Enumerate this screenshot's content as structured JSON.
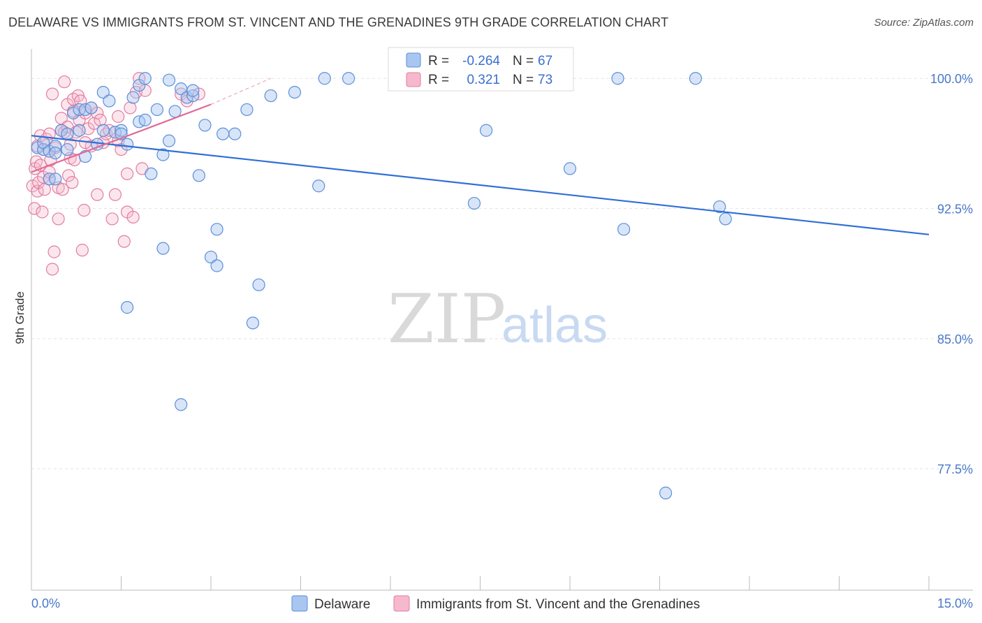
{
  "title": "DELAWARE VS IMMIGRANTS FROM ST. VINCENT AND THE GRENADINES 9TH GRADE CORRELATION CHART",
  "source": "Source: ZipAtlas.com",
  "watermark": {
    "zip": "ZIP",
    "atlas": "atlas"
  },
  "colors": {
    "blue_fill": "#a9c6f0",
    "blue_stroke": "#5b8fd9",
    "blue_line": "#2f6fd6",
    "pink_fill": "#f6b8cc",
    "pink_stroke": "#e07ea0",
    "pink_line": "#e06a96",
    "grid": "#e4e4e4",
    "tick_text": "#4a78c8"
  },
  "legend": {
    "rows": [
      {
        "r_label": "R =",
        "r_value": "-0.264",
        "n_label": "N =",
        "n_value": "67"
      },
      {
        "r_label": "R =",
        "r_value": "0.321",
        "n_label": "N =",
        "n_value": "73"
      }
    ]
  },
  "chart_data": {
    "type": "scatter",
    "ylabel": "9th Grade",
    "xlim": [
      0,
      15
    ],
    "ylim": [
      70.5,
      101.7
    ],
    "x_tick_labels": [
      {
        "value": 0,
        "label": "0.0%"
      },
      {
        "value": 15,
        "label": "15.0%"
      }
    ],
    "y_ticks": [
      {
        "value": 100.0,
        "label": "100.0%"
      },
      {
        "value": 92.5,
        "label": "92.5%"
      },
      {
        "value": 85.0,
        "label": "85.0%"
      },
      {
        "value": 77.5,
        "label": "77.5%"
      }
    ],
    "grid": "horizontal dashed",
    "series": [
      {
        "name": "Delaware",
        "trend": {
          "x": [
            0,
            15
          ],
          "y": [
            96.7,
            91.0
          ]
        },
        "points": [
          [
            0.1,
            96.0
          ],
          [
            0.2,
            95.9
          ],
          [
            0.2,
            96.3
          ],
          [
            0.3,
            95.8
          ],
          [
            0.3,
            94.2
          ],
          [
            0.4,
            96.1
          ],
          [
            0.4,
            95.7
          ],
          [
            0.5,
            97.0
          ],
          [
            0.6,
            96.8
          ],
          [
            0.7,
            98.0
          ],
          [
            0.8,
            98.2
          ],
          [
            0.9,
            95.5
          ],
          [
            0.9,
            98.2
          ],
          [
            1.0,
            98.3
          ],
          [
            1.1,
            96.2
          ],
          [
            1.2,
            99.2
          ],
          [
            1.2,
            97.0
          ],
          [
            1.3,
            98.7
          ],
          [
            1.4,
            96.9
          ],
          [
            1.5,
            97.0
          ],
          [
            1.5,
            96.8
          ],
          [
            1.6,
            96.2
          ],
          [
            1.7,
            98.9
          ],
          [
            1.8,
            97.5
          ],
          [
            1.8,
            99.6
          ],
          [
            1.9,
            97.6
          ],
          [
            1.9,
            100.0
          ],
          [
            2.0,
            94.5
          ],
          [
            2.1,
            98.2
          ],
          [
            2.2,
            95.6
          ],
          [
            2.2,
            90.2
          ],
          [
            2.3,
            96.4
          ],
          [
            2.3,
            99.9
          ],
          [
            2.4,
            98.1
          ],
          [
            2.5,
            99.4
          ],
          [
            2.6,
            98.9
          ],
          [
            2.7,
            99.0
          ],
          [
            2.7,
            99.3
          ],
          [
            2.8,
            94.4
          ],
          [
            2.9,
            97.3
          ],
          [
            3.0,
            89.7
          ],
          [
            3.1,
            91.3
          ],
          [
            3.1,
            89.2
          ],
          [
            3.2,
            96.8
          ],
          [
            3.4,
            96.8
          ],
          [
            3.6,
            98.2
          ],
          [
            3.7,
            85.9
          ],
          [
            3.8,
            88.1
          ],
          [
            4.0,
            99.0
          ],
          [
            4.4,
            99.2
          ],
          [
            4.8,
            93.8
          ],
          [
            4.9,
            100.0
          ],
          [
            5.3,
            100.0
          ],
          [
            1.6,
            86.8
          ],
          [
            2.5,
            81.2
          ],
          [
            7.4,
            92.8
          ],
          [
            7.6,
            97.0
          ],
          [
            9.0,
            94.8
          ],
          [
            9.8,
            100.0
          ],
          [
            9.9,
            91.3
          ],
          [
            10.6,
            76.1
          ],
          [
            11.1,
            100.0
          ],
          [
            11.5,
            92.6
          ],
          [
            11.6,
            91.9
          ],
          [
            0.8,
            97.0
          ],
          [
            0.6,
            95.9
          ],
          [
            0.4,
            94.2
          ]
        ]
      },
      {
        "name": "Immigrants from St. Vincent and the Grenadines",
        "trend": {
          "x": [
            0,
            3.0
          ],
          "y": [
            94.6,
            98.5
          ]
        },
        "trend_ext": {
          "x": [
            3.0,
            4.0
          ],
          "y": [
            98.5,
            100.0
          ]
        },
        "points": [
          [
            0.02,
            93.8
          ],
          [
            0.05,
            92.5
          ],
          [
            0.06,
            94.8
          ],
          [
            0.08,
            95.2
          ],
          [
            0.1,
            93.5
          ],
          [
            0.12,
            94.0
          ],
          [
            0.15,
            96.7
          ],
          [
            0.18,
            92.3
          ],
          [
            0.2,
            94.3
          ],
          [
            0.2,
            95.9
          ],
          [
            0.22,
            93.6
          ],
          [
            0.25,
            96.5
          ],
          [
            0.3,
            94.2
          ],
          [
            0.3,
            96.8
          ],
          [
            0.32,
            95.3
          ],
          [
            0.35,
            99.1
          ],
          [
            0.35,
            89.0
          ],
          [
            0.38,
            90.0
          ],
          [
            0.4,
            96.0
          ],
          [
            0.45,
            91.9
          ],
          [
            0.45,
            93.7
          ],
          [
            0.5,
            97.7
          ],
          [
            0.5,
            97.0
          ],
          [
            0.52,
            93.6
          ],
          [
            0.55,
            99.8
          ],
          [
            0.55,
            96.9
          ],
          [
            0.6,
            98.5
          ],
          [
            0.6,
            97.2
          ],
          [
            0.62,
            94.4
          ],
          [
            0.65,
            95.4
          ],
          [
            0.65,
            96.2
          ],
          [
            0.68,
            94.0
          ],
          [
            0.7,
            98.8
          ],
          [
            0.72,
            95.3
          ],
          [
            0.75,
            96.9
          ],
          [
            0.78,
            99.0
          ],
          [
            0.8,
            97.6
          ],
          [
            0.82,
            98.7
          ],
          [
            0.85,
            90.1
          ],
          [
            0.88,
            92.4
          ],
          [
            0.9,
            98.0
          ],
          [
            0.95,
            97.1
          ],
          [
            1.0,
            98.3
          ],
          [
            1.0,
            96.1
          ],
          [
            1.05,
            97.4
          ],
          [
            1.1,
            93.3
          ],
          [
            1.1,
            98.0
          ],
          [
            1.15,
            97.6
          ],
          [
            1.2,
            96.3
          ],
          [
            1.25,
            96.8
          ],
          [
            1.3,
            97.0
          ],
          [
            1.35,
            91.9
          ],
          [
            1.4,
            93.3
          ],
          [
            1.45,
            96.4
          ],
          [
            1.5,
            95.9
          ],
          [
            1.55,
            90.6
          ],
          [
            1.6,
            92.3
          ],
          [
            1.65,
            98.3
          ],
          [
            1.7,
            92.0
          ],
          [
            1.75,
            99.2
          ],
          [
            1.8,
            100.0
          ],
          [
            1.85,
            94.8
          ],
          [
            1.9,
            99.3
          ],
          [
            2.5,
            99.1
          ],
          [
            2.6,
            98.7
          ],
          [
            2.8,
            99.1
          ],
          [
            1.6,
            94.5
          ],
          [
            0.9,
            96.3
          ],
          [
            0.3,
            94.6
          ],
          [
            0.15,
            95.0
          ],
          [
            0.1,
            96.1
          ],
          [
            0.7,
            98.1
          ],
          [
            1.45,
            97.8
          ]
        ]
      }
    ]
  },
  "bottom_legend": [
    {
      "label": "Delaware"
    },
    {
      "label": "Immigrants from St. Vincent and the Grenadines"
    }
  ]
}
